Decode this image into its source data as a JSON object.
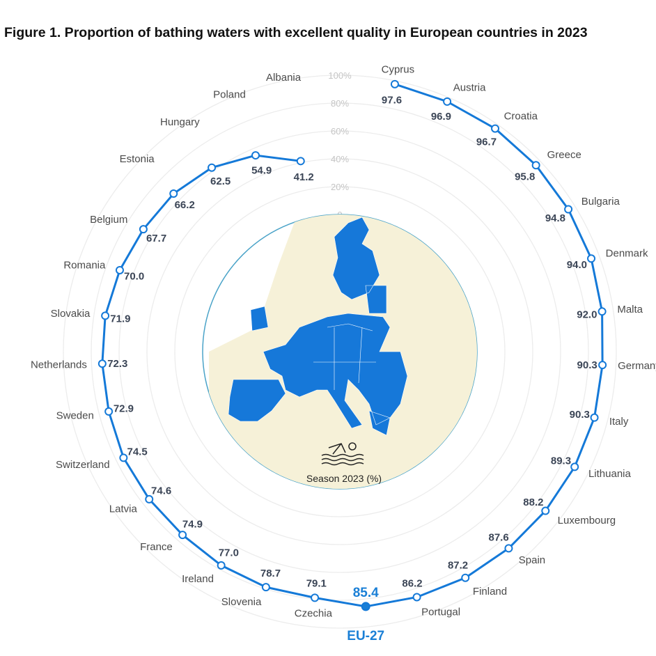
{
  "title": "Figure 1. Proportion of bathing waters with excellent quality in European countries in 2023",
  "chart_data": {
    "type": "radar",
    "title": "Figure 1. Proportion of bathing waters with excellent quality in European countries in 2023",
    "center_label": "Season 2023 (%)",
    "radial_ticks": [
      "0",
      "20%",
      "40%",
      "60%",
      "80%",
      "100%"
    ],
    "rlim": [
      0,
      100
    ],
    "grid": true,
    "line_color": "#1479d8",
    "highlight_color": "#1a7fd6",
    "highlight": "EU-27",
    "categories": [
      "Cyprus",
      "Austria",
      "Croatia",
      "Greece",
      "Bulgaria",
      "Denmark",
      "Malta",
      "Germany",
      "Italy",
      "Lithuania",
      "Luxembourg",
      "Spain",
      "Finland",
      "Portugal",
      "EU-27",
      "Czechia",
      "Slovenia",
      "Ireland",
      "France",
      "Latvia",
      "Switzerland",
      "Sweden",
      "Netherlands",
      "Slovakia",
      "Romania",
      "Belgium",
      "Estonia",
      "Hungary",
      "Poland",
      "Albania"
    ],
    "values": [
      97.6,
      96.9,
      96.7,
      95.8,
      94.8,
      94.0,
      92.0,
      90.3,
      90.3,
      89.3,
      88.2,
      87.6,
      87.2,
      86.2,
      85.4,
      79.1,
      78.7,
      77.0,
      74.9,
      74.6,
      74.5,
      72.9,
      72.3,
      71.9,
      70.0,
      67.7,
      66.2,
      62.5,
      54.9,
      41.2
    ],
    "value_labels": [
      "97.6",
      "96.9",
      "96.7",
      "95.8",
      "94.8",
      "94.0",
      "92.0",
      "90.3",
      "90.3",
      "89.3",
      "88.2",
      "87.6",
      "87.2",
      "86.2",
      "85.4",
      "79.1",
      "78.7",
      "77.0",
      "74.9",
      "74.6",
      "74.5",
      "72.9",
      "72.3",
      "71.9",
      "70.0",
      "67.7",
      "66.2",
      "62.5",
      "54.9",
      "41.2"
    ]
  }
}
